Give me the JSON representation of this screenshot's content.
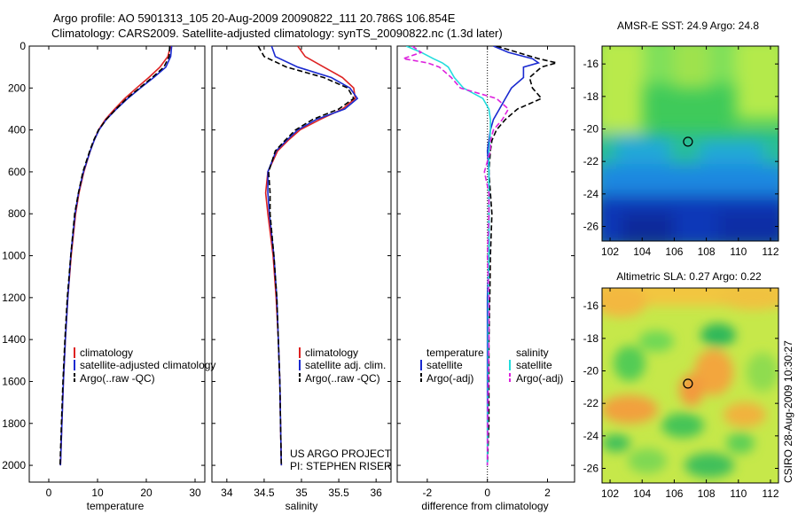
{
  "title": {
    "line1": "Argo profile: AO 5901313_105 20-Aug-2009 20090822_111 20.786S 106.854E",
    "line2": "Climatology: CARS2009. Satellite-adjusted climatology: synTS_20090822.nc (1.3d later)"
  },
  "footer": "CSIRO 28-Aug-2009 10:30:27",
  "colors": {
    "climatology": "#dd2222",
    "satellite": "#1a2ad0",
    "argo": "#000000",
    "sat_salt": "#22dddd",
    "argo_salt": "#dd22dd"
  },
  "chart_data": [
    {
      "id": "temperature",
      "type": "line",
      "xlabel": "temperature",
      "xlim": [
        -4,
        32
      ],
      "xticks": [
        0,
        10,
        20,
        30
      ],
      "ylim": [
        0,
        2080
      ],
      "yticks": [
        0,
        200,
        400,
        600,
        800,
        1000,
        1200,
        1400,
        1600,
        1800,
        2000
      ],
      "legend": [
        "climatology",
        "satellite-adjusted climatology",
        "Argo(..raw -QC)"
      ],
      "series": [
        {
          "name": "climatology",
          "style": "solid",
          "color": "#dd2222",
          "depth": [
            0,
            50,
            100,
            150,
            200,
            250,
            300,
            350,
            400,
            450,
            500,
            600,
            700,
            800,
            1000,
            1200,
            1400,
            1600,
            1800,
            2000
          ],
          "values": [
            25.0,
            24.4,
            22.8,
            20.5,
            18.0,
            15.6,
            13.5,
            11.6,
            10.2,
            9.3,
            8.5,
            7.2,
            6.2,
            5.5,
            4.6,
            3.9,
            3.4,
            3.0,
            2.7,
            2.4
          ]
        },
        {
          "name": "satellite",
          "style": "solid",
          "color": "#1a2ad0",
          "depth": [
            0,
            50,
            100,
            150,
            200,
            250,
            300,
            350,
            400,
            450,
            500,
            600,
            700,
            800,
            1000,
            1200,
            1400,
            1600,
            1800,
            2000
          ],
          "values": [
            25.2,
            25.0,
            24.0,
            21.5,
            18.8,
            16.2,
            13.9,
            11.8,
            10.3,
            9.3,
            8.5,
            7.1,
            6.1,
            5.4,
            4.5,
            3.9,
            3.4,
            3.0,
            2.7,
            2.4
          ]
        },
        {
          "name": "Argo",
          "style": "dashed",
          "color": "#000000",
          "depth": [
            0,
            50,
            100,
            150,
            200,
            250,
            300,
            350,
            400,
            450,
            500,
            600,
            700,
            800,
            1000,
            1200,
            1400,
            1600,
            1800,
            2000
          ],
          "values": [
            24.8,
            24.7,
            23.6,
            21.2,
            18.6,
            16.0,
            13.8,
            11.8,
            10.2,
            9.2,
            8.4,
            7.0,
            6.1,
            5.3,
            4.5,
            3.8,
            3.3,
            2.9,
            2.6,
            2.3
          ]
        }
      ]
    },
    {
      "id": "salinity",
      "type": "line",
      "xlabel": "salinity",
      "xlim": [
        33.8,
        36.2
      ],
      "xticks": [
        34,
        34.5,
        35,
        35.5,
        36
      ],
      "ylim": [
        0,
        2080
      ],
      "legend": [
        "climatology",
        "satellite adj. clim.",
        "Argo(..raw -QC)"
      ],
      "credits": [
        "US ARGO PROJECT",
        "PI: STEPHEN RISER"
      ],
      "series": [
        {
          "name": "climatology",
          "style": "solid",
          "color": "#dd2222",
          "depth": [
            0,
            50,
            100,
            150,
            200,
            250,
            300,
            350,
            400,
            450,
            500,
            600,
            700,
            800,
            1000,
            1200,
            1400,
            1600,
            1800,
            2000
          ],
          "values": [
            34.95,
            35.05,
            35.3,
            35.55,
            35.7,
            35.72,
            35.55,
            35.25,
            34.98,
            34.82,
            34.68,
            34.55,
            34.52,
            34.55,
            34.62,
            34.66,
            34.69,
            34.71,
            34.72,
            34.73
          ]
        },
        {
          "name": "satellite",
          "style": "solid",
          "color": "#1a2ad0",
          "depth": [
            0,
            50,
            100,
            150,
            200,
            250,
            300,
            350,
            400,
            450,
            500,
            600,
            700,
            800,
            1000,
            1200,
            1400,
            1600,
            1800,
            2000
          ],
          "values": [
            34.6,
            34.65,
            34.95,
            35.4,
            35.65,
            35.75,
            35.58,
            35.2,
            34.95,
            34.8,
            34.66,
            34.55,
            34.55,
            34.57,
            34.63,
            34.67,
            34.69,
            34.71,
            34.72,
            34.73
          ]
        },
        {
          "name": "Argo",
          "style": "dashed",
          "color": "#000000",
          "depth": [
            0,
            50,
            100,
            150,
            200,
            250,
            300,
            350,
            400,
            450,
            500,
            600,
            700,
            800,
            1000,
            1200,
            1400,
            1600,
            1800,
            2000
          ],
          "values": [
            34.42,
            34.5,
            34.8,
            35.3,
            35.62,
            35.7,
            35.5,
            35.15,
            34.92,
            34.78,
            34.65,
            34.56,
            34.58,
            34.58,
            34.63,
            34.67,
            34.69,
            34.71,
            34.72,
            34.73
          ]
        }
      ]
    },
    {
      "id": "difference",
      "type": "line",
      "xlabel": "difference from climatology",
      "xlim": [
        -3,
        2.9
      ],
      "xticks": [
        -2,
        0,
        2
      ],
      "ylim": [
        0,
        2080
      ],
      "legend_groups": [
        {
          "header": "temperature",
          "items": [
            "satellite",
            "Argo(-adj)"
          ]
        },
        {
          "header": "salinity",
          "items": [
            "satellite",
            "Argo(-adj)"
          ]
        }
      ],
      "series": [
        {
          "name": "temperature satellite",
          "style": "solid",
          "color": "#1a2ad0",
          "depth": [
            0,
            30,
            60,
            80,
            100,
            150,
            200,
            250,
            300,
            350,
            400,
            450,
            500,
            600,
            700,
            800,
            1000,
            1200,
            1400,
            1600,
            1800,
            2000
          ],
          "values": [
            0.2,
            0.7,
            1.5,
            1.7,
            1.2,
            1.2,
            0.8,
            0.6,
            0.4,
            0.2,
            0.1,
            0.05,
            0,
            0.05,
            0.05,
            0.05,
            0.05,
            0.0,
            0.0,
            0.0,
            0.0,
            0.0
          ]
        },
        {
          "name": "temperature Argo",
          "style": "dashed",
          "color": "#000000",
          "depth": [
            0,
            30,
            60,
            80,
            100,
            150,
            200,
            250,
            300,
            350,
            400,
            450,
            500,
            600,
            700,
            800,
            1000,
            1200,
            1400,
            1600,
            1800,
            2000
          ],
          "values": [
            0.3,
            1.0,
            1.7,
            2.3,
            1.8,
            1.4,
            1.5,
            1.8,
            1.0,
            0.6,
            0.3,
            0.15,
            0.1,
            0.05,
            0.1,
            0.15,
            0.1,
            0.08,
            0.05,
            0.05,
            0.05,
            0.0
          ]
        },
        {
          "name": "salinity satellite",
          "style": "solid",
          "color": "#22dddd",
          "depth": [
            0,
            30,
            60,
            80,
            100,
            150,
            200,
            250,
            300,
            350,
            400,
            450,
            500,
            600,
            700,
            800,
            1000,
            1200,
            1400,
            1600,
            1800,
            2000
          ],
          "values": [
            -2.7,
            -2.2,
            -1.8,
            -1.5,
            -1.3,
            -1.1,
            -0.8,
            -0.15,
            0.05,
            0.1,
            0.1,
            0.08,
            0.05,
            0.05,
            0.05,
            0.05,
            0.05,
            0.03,
            0.02,
            0.02,
            0.01,
            0.0
          ]
        },
        {
          "name": "salinity Argo",
          "style": "dashed",
          "color": "#dd22dd",
          "depth": [
            0,
            30,
            60,
            80,
            100,
            150,
            200,
            250,
            300,
            350,
            400,
            450,
            500,
            600,
            700,
            800,
            1000,
            1200,
            1400,
            1600,
            1800,
            2000
          ],
          "values": [
            -2.5,
            -2.2,
            -2.8,
            -2.0,
            -1.6,
            -1.2,
            -0.9,
            0.3,
            0.7,
            0.5,
            0.2,
            0.1,
            0.1,
            -0.1,
            0.05,
            0.05,
            0.0,
            0.05,
            0.05,
            0.03,
            0.01,
            0.0
          ]
        }
      ]
    },
    {
      "id": "sst-map",
      "type": "heatmap",
      "title": "AMSR-E SST: 24.9 Argo: 24.8",
      "xlim": [
        101.5,
        112.5
      ],
      "ylim": [
        -26.9,
        -14.9
      ],
      "xticks": [
        102,
        104,
        106,
        108,
        110,
        112
      ],
      "yticks": [
        -16,
        -18,
        -20,
        -22,
        -24,
        -26
      ],
      "marker": {
        "lon": 106.854,
        "lat": -20.786
      }
    },
    {
      "id": "sla-map",
      "type": "heatmap",
      "title": "Altimetric SLA: 0.27 Argo: 0.22",
      "xlim": [
        101.5,
        112.5
      ],
      "ylim": [
        -26.9,
        -14.9
      ],
      "xticks": [
        102,
        104,
        106,
        108,
        110,
        112
      ],
      "yticks": [
        -16,
        -18,
        -20,
        -22,
        -24,
        -26
      ],
      "marker": {
        "lon": 106.854,
        "lat": -20.786
      }
    }
  ]
}
